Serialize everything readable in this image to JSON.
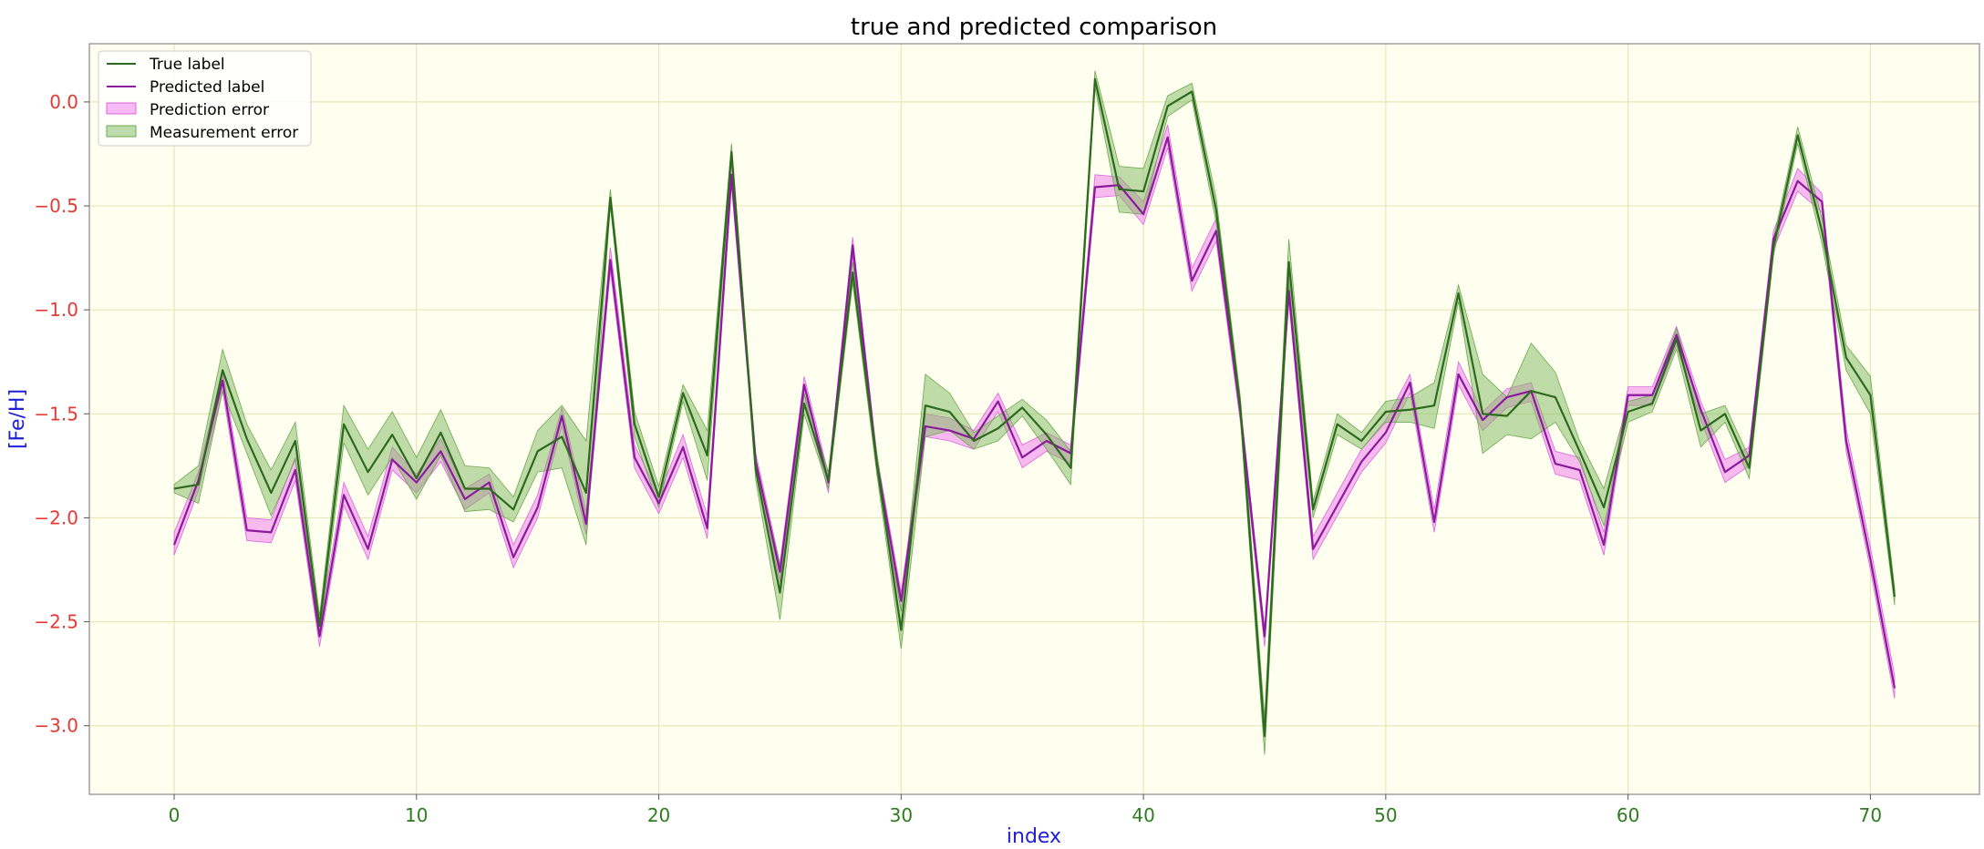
{
  "chart_data": {
    "type": "line",
    "title": "true and predicted comparison",
    "xlabel": "index",
    "ylabel": "[Fe/H]",
    "xlim": [
      -3.5,
      74.5
    ],
    "ylim": [
      -3.33,
      0.28
    ],
    "xticks": [
      0,
      10,
      20,
      30,
      40,
      50,
      60,
      70
    ],
    "yticks": [
      0.0,
      -0.5,
      -1.0,
      -1.5,
      -2.0,
      -2.5,
      -3.0
    ],
    "xtick_labels": [
      "0",
      "10",
      "20",
      "30",
      "40",
      "50",
      "60",
      "70"
    ],
    "ytick_labels": [
      "0.0",
      "−0.5",
      "−1.0",
      "−1.5",
      "−2.0",
      "−2.5",
      "−3.0"
    ],
    "grid": true,
    "legend_position": "top-left",
    "colors": {
      "background": "#fffff0",
      "grid": "#e6e6b8",
      "true_line": "#2d6a1f",
      "pred_line": "#8b1a9c",
      "pred_band": "#ee82ee",
      "meas_band": "#7fba5f"
    },
    "x": [
      0,
      1,
      2,
      3,
      4,
      5,
      6,
      7,
      8,
      9,
      10,
      11,
      12,
      13,
      14,
      15,
      16,
      17,
      18,
      19,
      20,
      21,
      22,
      23,
      24,
      25,
      26,
      27,
      28,
      29,
      30,
      31,
      32,
      33,
      34,
      35,
      36,
      37,
      38,
      39,
      40,
      41,
      42,
      43,
      44,
      45,
      46,
      47,
      48,
      49,
      50,
      51,
      52,
      53,
      54,
      55,
      56,
      57,
      58,
      59,
      60,
      61,
      62,
      63,
      64,
      65,
      66,
      67,
      68,
      69,
      70,
      71
    ],
    "series": [
      {
        "name": "True label",
        "values": [
          -1.86,
          -1.84,
          -1.29,
          -1.62,
          -1.88,
          -1.63,
          -2.52,
          -1.55,
          -1.78,
          -1.6,
          -1.81,
          -1.59,
          -1.86,
          -1.86,
          -1.96,
          -1.68,
          -1.61,
          -1.88,
          -0.46,
          -1.55,
          -1.9,
          -1.4,
          -1.7,
          -0.24,
          -1.77,
          -2.36,
          -1.45,
          -1.82,
          -0.82,
          -1.74,
          -2.54,
          -1.46,
          -1.49,
          -1.63,
          -1.57,
          -1.47,
          -1.6,
          -1.76,
          0.11,
          -0.42,
          -0.43,
          -0.02,
          0.05,
          -0.52,
          -1.47,
          -3.05,
          -0.77,
          -1.96,
          -1.55,
          -1.63,
          -1.49,
          -1.48,
          -1.46,
          -0.92,
          -1.5,
          -1.51,
          -1.39,
          -1.42,
          -1.68,
          -1.95,
          -1.49,
          -1.45,
          -1.14,
          -1.58,
          -1.5,
          -1.76,
          -0.7,
          -0.16,
          -0.62,
          -1.23,
          -1.41,
          -2.38
        ],
        "band_halfwidth": [
          0.02,
          0.09,
          0.1,
          0.07,
          0.11,
          0.09,
          0.05,
          0.09,
          0.11,
          0.11,
          0.1,
          0.11,
          0.11,
          0.1,
          0.06,
          0.1,
          0.15,
          0.25,
          0.04,
          0.06,
          0.05,
          0.04,
          0.12,
          0.04,
          0.05,
          0.13,
          0.05,
          0.04,
          0.05,
          0.05,
          0.09,
          0.15,
          0.09,
          0.04,
          0.06,
          0.04,
          0.07,
          0.08,
          0.04,
          0.11,
          0.11,
          0.05,
          0.04,
          0.06,
          0.05,
          0.09,
          0.11,
          0.04,
          0.05,
          0.04,
          0.05,
          0.06,
          0.11,
          0.04,
          0.19,
          0.09,
          0.23,
          0.12,
          0.05,
          0.09,
          0.05,
          0.04,
          0.05,
          0.08,
          0.04,
          0.05,
          0.04,
          0.04,
          0.06,
          0.06,
          0.09,
          0.04
        ]
      },
      {
        "name": "Predicted label",
        "values": [
          -2.13,
          -1.82,
          -1.34,
          -2.06,
          -2.07,
          -1.77,
          -2.57,
          -1.89,
          -2.15,
          -1.72,
          -1.83,
          -1.68,
          -1.91,
          -1.83,
          -2.19,
          -1.95,
          -1.51,
          -2.03,
          -0.76,
          -1.71,
          -1.93,
          -1.66,
          -2.05,
          -0.35,
          -1.73,
          -2.26,
          -1.36,
          -1.83,
          -0.69,
          -1.74,
          -2.4,
          -1.56,
          -1.58,
          -1.62,
          -1.44,
          -1.71,
          -1.63,
          -1.69,
          -0.41,
          -0.4,
          -0.54,
          -0.17,
          -0.86,
          -0.62,
          -1.49,
          -2.57,
          -0.91,
          -2.15,
          -1.94,
          -1.73,
          -1.59,
          -1.35,
          -2.02,
          -1.31,
          -1.53,
          -1.42,
          -1.39,
          -1.74,
          -1.77,
          -2.13,
          -1.41,
          -1.41,
          -1.12,
          -1.48,
          -1.78,
          -1.7,
          -0.66,
          -0.38,
          -0.48,
          -1.63,
          -2.2,
          -2.82
        ]
      }
    ],
    "bands": [
      {
        "name": "Prediction error"
      },
      {
        "name": "Measurement error"
      }
    ]
  }
}
